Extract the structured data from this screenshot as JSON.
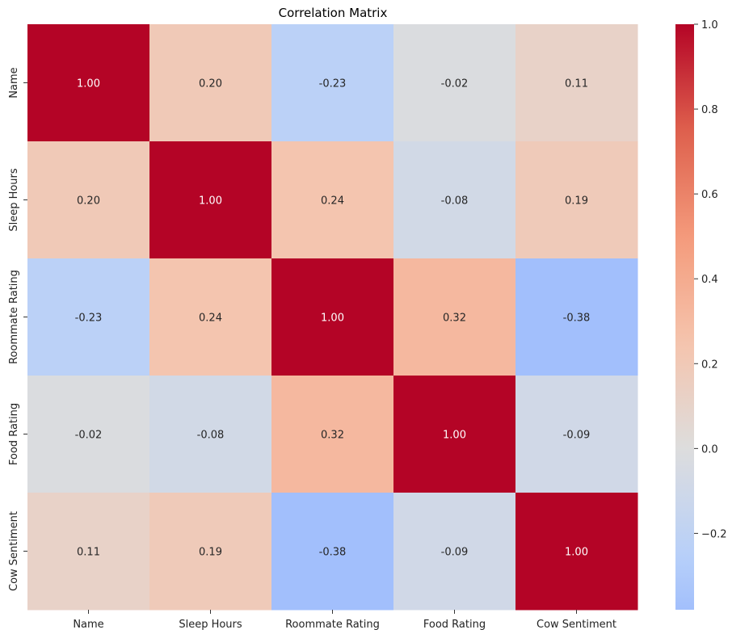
{
  "chart_data": {
    "type": "heatmap",
    "title": "Correlation Matrix",
    "xlabel": "",
    "ylabel": "",
    "categories_x": [
      "Name",
      "Sleep Hours",
      "Roommate Rating",
      "Food Rating",
      "Cow Sentiment"
    ],
    "categories_y": [
      "Name",
      "Sleep Hours",
      "Roommate Rating",
      "Food Rating",
      "Cow Sentiment"
    ],
    "matrix": [
      [
        1.0,
        0.2,
        -0.23,
        -0.02,
        0.11
      ],
      [
        0.2,
        1.0,
        0.24,
        -0.08,
        0.19
      ],
      [
        -0.23,
        0.24,
        1.0,
        0.32,
        -0.38
      ],
      [
        -0.02,
        -0.08,
        0.32,
        1.0,
        -0.09
      ],
      [
        0.11,
        0.19,
        -0.38,
        -0.09,
        1.0
      ]
    ],
    "value_format": "0.00",
    "colormap": "coolwarm",
    "center": 0,
    "colorbar": {
      "min": -0.38,
      "max": 1.0,
      "ticks": [
        -0.2,
        0.0,
        0.2,
        0.4,
        0.6,
        0.8,
        1.0
      ],
      "tick_labels": [
        "−0.2",
        "0.0",
        "0.2",
        "0.4",
        "0.6",
        "0.8",
        "1.0"
      ]
    }
  }
}
